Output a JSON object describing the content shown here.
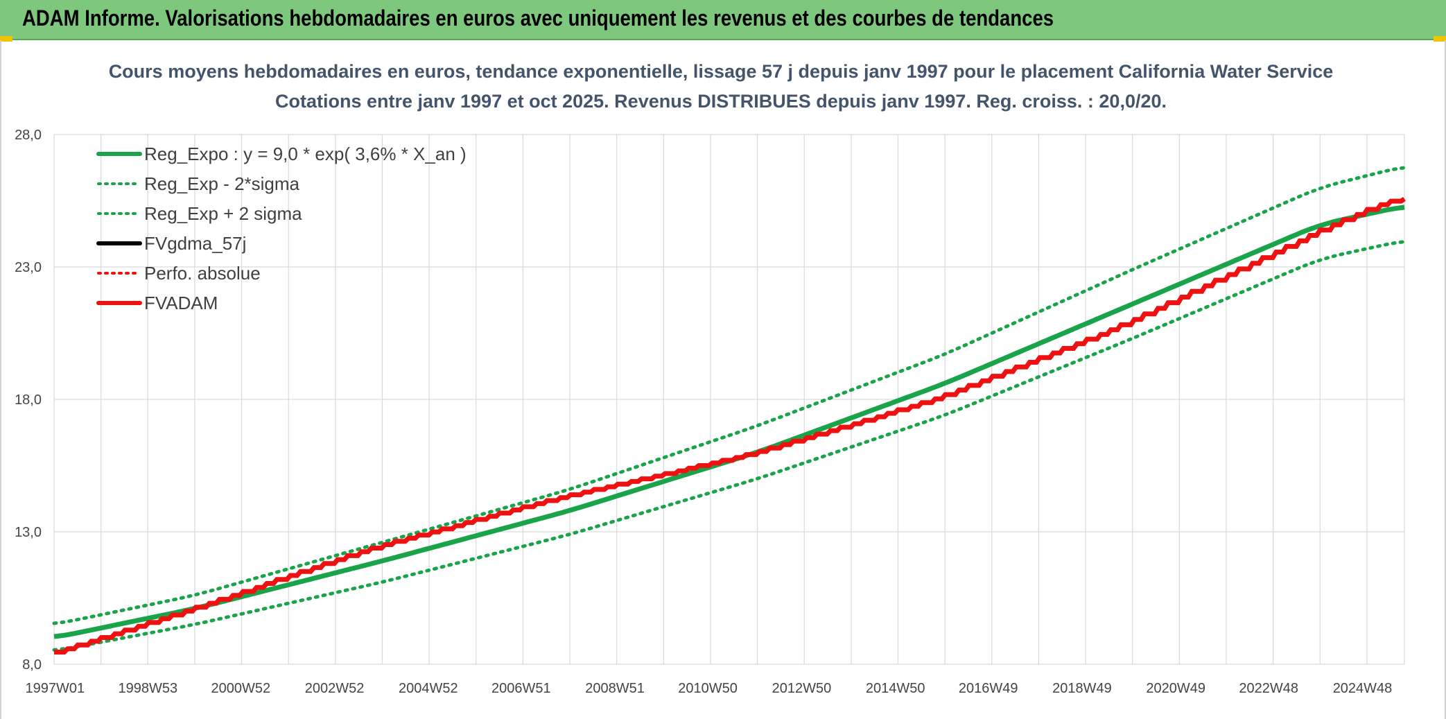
{
  "header": {
    "title": "ADAM Informe. Valorisations hebdomadaires en euros avec uniquement les revenus et des courbes de tendances"
  },
  "colors": {
    "banner": "#7ec87e",
    "green": "#1aa44a",
    "red": "#ee1111",
    "black": "#000000",
    "grid": "#d9d9d9"
  },
  "chart_data": {
    "type": "line",
    "title": "Cours moyens hebdomadaires en euros, tendance exponentielle, lissage 57 j depuis janv 1997 pour le placement California Water Service",
    "subtitle": "Cotations entre janv 1997 et oct 2025. Revenus DISTRIBUES depuis janv 1997. Reg. croiss. : 20,0/20.",
    "ylim": [
      8.0,
      28.0
    ],
    "yticks": [
      "8,0",
      "13,0",
      "18,0",
      "23,0",
      "28,0"
    ],
    "xlim": [
      1997.0,
      2025.8
    ],
    "xticks": [
      "1997W01",
      "1998W53",
      "2000W52",
      "2002W52",
      "2004W52",
      "2006W51",
      "2008W51",
      "2010W50",
      "2012W50",
      "2014W50",
      "2016W49",
      "2018W49",
      "2020W49",
      "2022W48",
      "2024W48"
    ],
    "grid": true,
    "legend_position": "top-left",
    "legend": [
      {
        "label": "Reg_Expo : y = 9,0 * exp( 3,6% *  X_an )",
        "color": "#1aa44a",
        "style": "solid"
      },
      {
        "label": "Reg_Exp - 2*sigma",
        "color": "#1aa44a",
        "style": "dotted"
      },
      {
        "label": "Reg_Exp + 2 sigma",
        "color": "#1aa44a",
        "style": "dotted"
      },
      {
        "label": "FVgdma_57j",
        "color": "#000000",
        "style": "solid"
      },
      {
        "label": "Perfo. absolue",
        "color": "#ee1111",
        "style": "dotted"
      },
      {
        "label": "FVADAM",
        "color": "#ee1111",
        "style": "solid"
      }
    ],
    "series": [
      {
        "name": "Reg_Expo : y = 9,0 * exp( 3,6% *  X_an )",
        "x": [
          1997.0,
          2000.0,
          2004.0,
          2008.0,
          2012.0,
          2016.0,
          2020.0,
          2024.0,
          2025.8
        ],
        "y": [
          9.0,
          10.1,
          11.9,
          13.8,
          16.0,
          18.6,
          21.6,
          24.6,
          25.3
        ]
      },
      {
        "name": "Reg_Exp - 2*sigma",
        "x": [
          1997.0,
          2000.0,
          2004.0,
          2008.0,
          2012.0,
          2016.0,
          2020.0,
          2024.0,
          2025.8
        ],
        "y": [
          8.5,
          9.5,
          11.1,
          12.9,
          15.0,
          17.4,
          20.3,
          23.3,
          24.0
        ]
      },
      {
        "name": "Reg_Exp + 2 sigma",
        "x": [
          1997.0,
          2000.0,
          2004.0,
          2008.0,
          2012.0,
          2016.0,
          2020.0,
          2024.0,
          2025.8
        ],
        "y": [
          9.5,
          10.6,
          12.6,
          14.6,
          17.0,
          19.7,
          22.9,
          26.0,
          26.8
        ]
      },
      {
        "name": "FVADAM",
        "x": [
          1997.0,
          2000.0,
          2004.0,
          2008.0,
          2012.0,
          2016.0,
          2020.0,
          2024.0,
          2025.8
        ],
        "y": [
          8.3,
          10.0,
          12.4,
          14.3,
          15.9,
          18.0,
          20.8,
          24.2,
          25.6
        ]
      }
    ]
  }
}
